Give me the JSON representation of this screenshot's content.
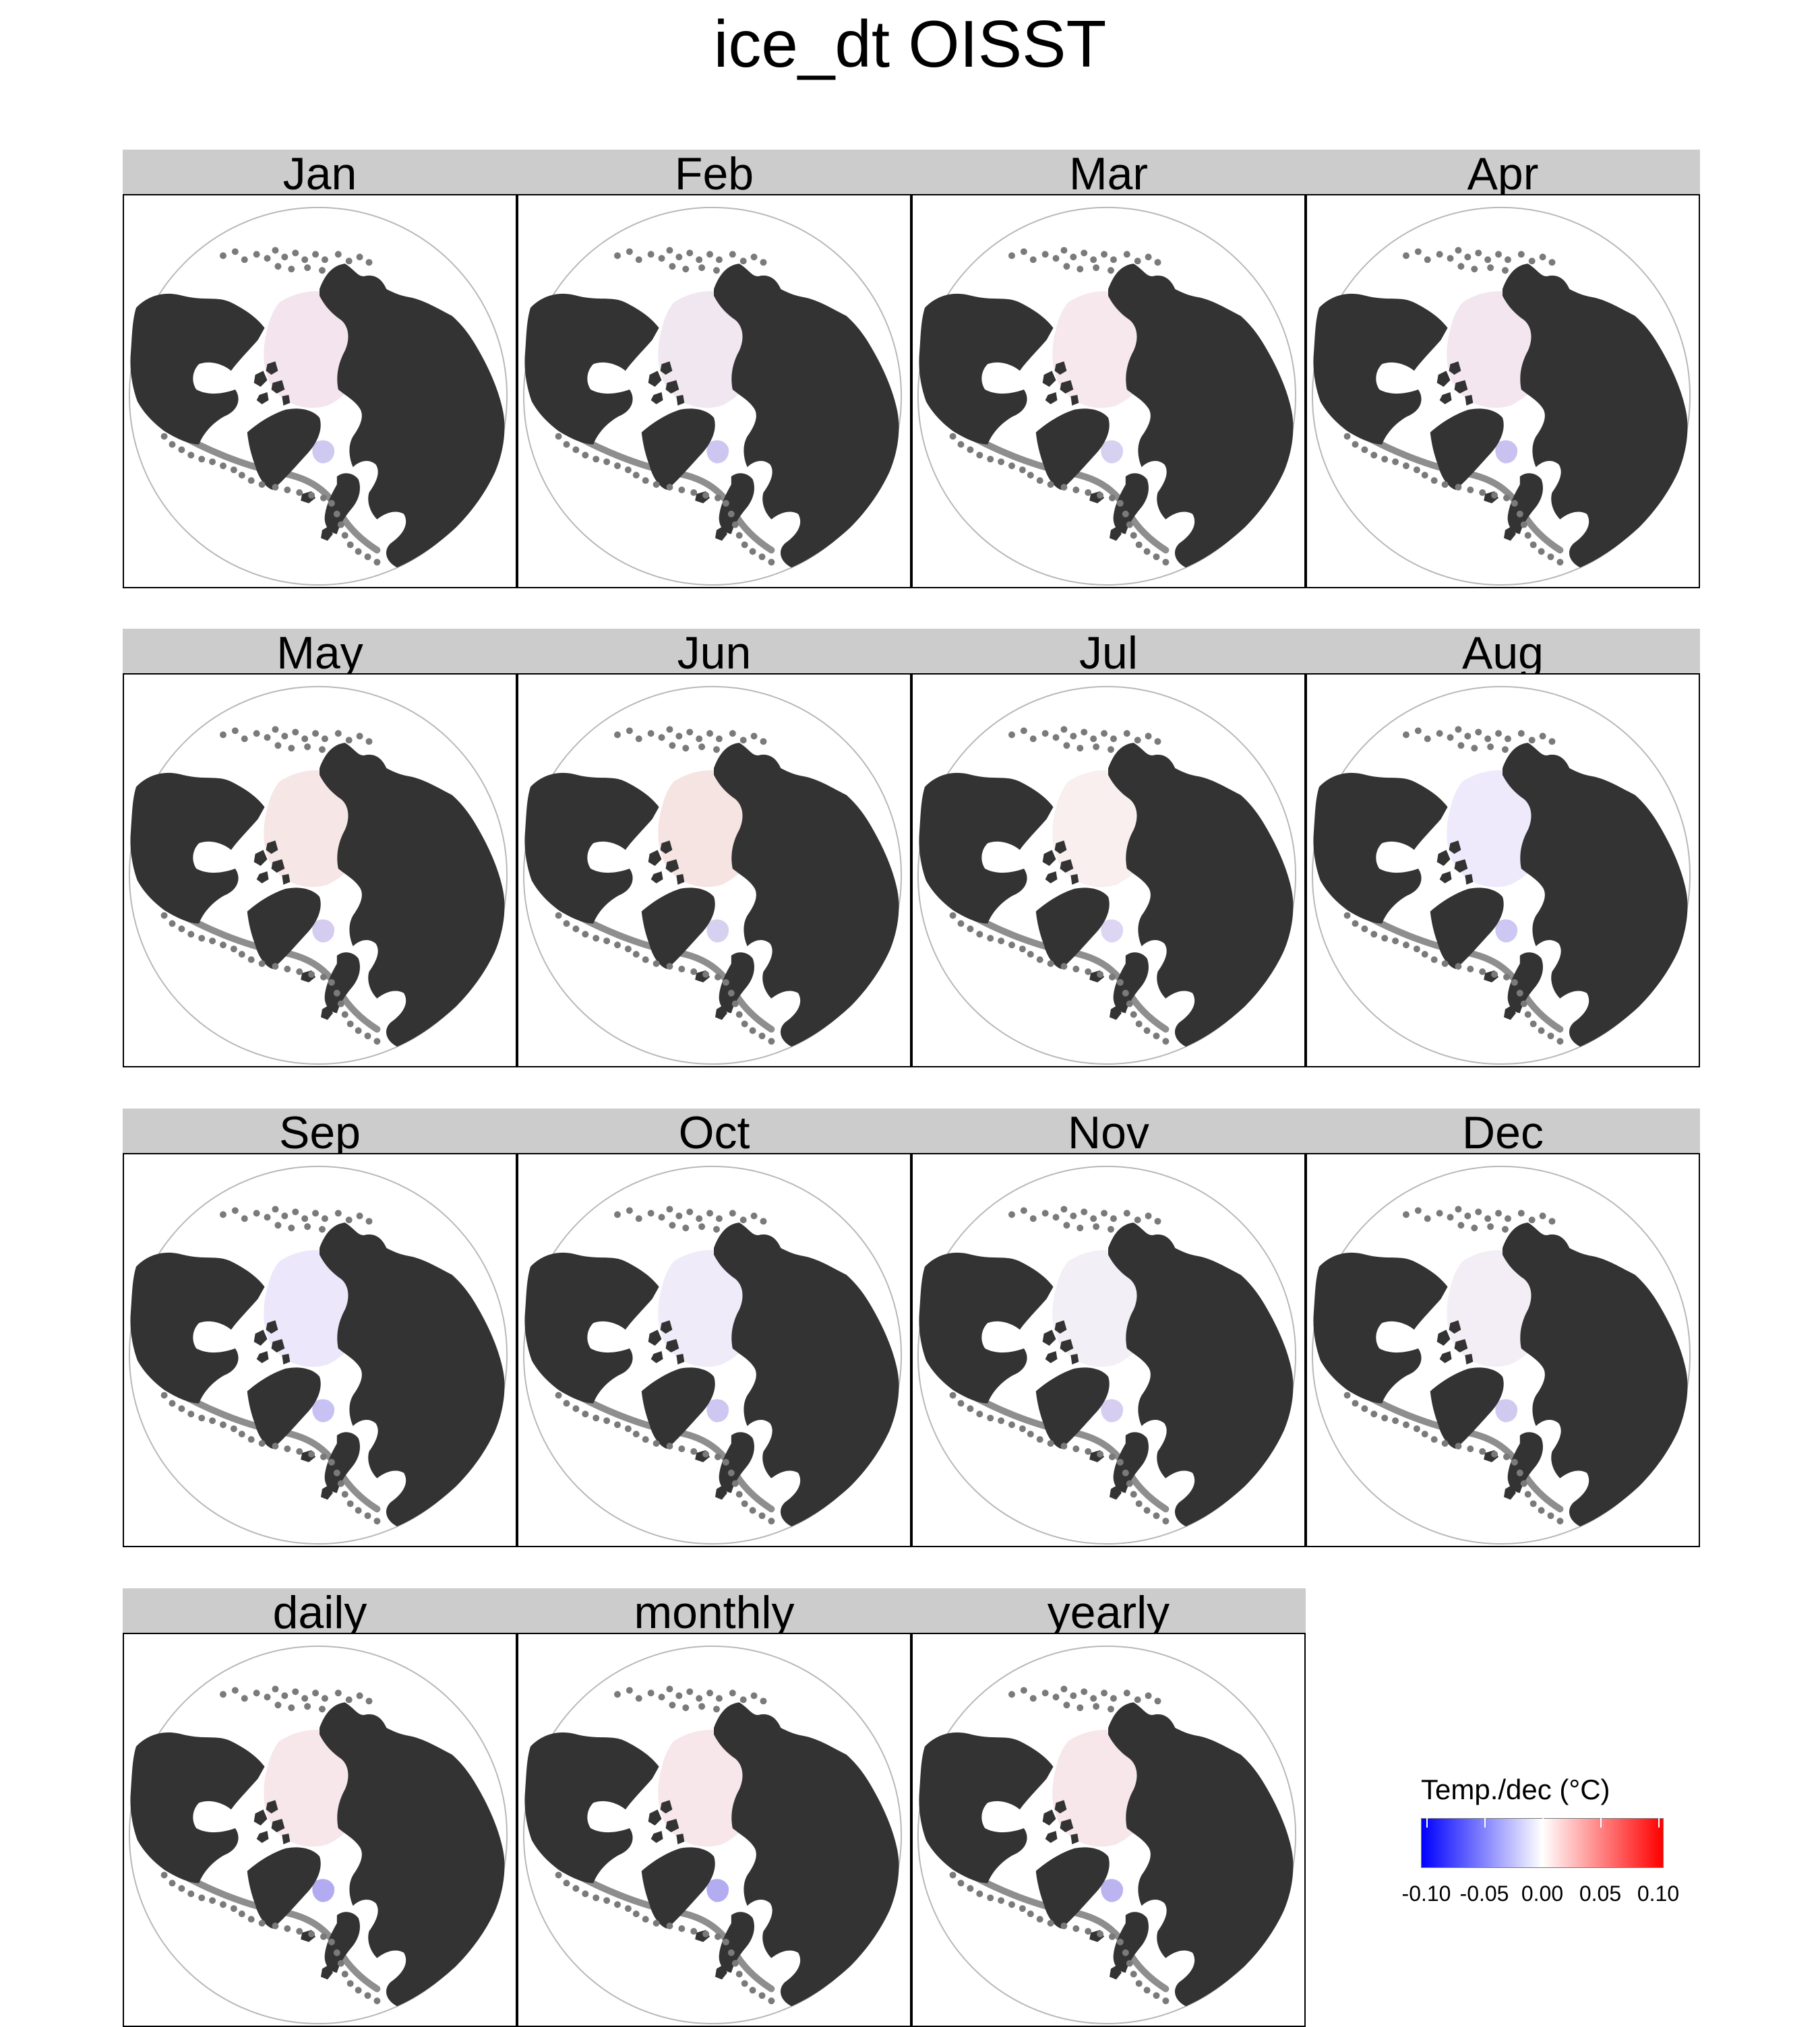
{
  "figure": {
    "title": "ice_dt OISST",
    "panels": [
      {
        "label": "Jan",
        "tint": "#f4e4ee",
        "accent": "#c9c3ef"
      },
      {
        "label": "Feb",
        "tint": "#f1e7f0",
        "accent": "#c6c0ef"
      },
      {
        "label": "Mar",
        "tint": "#f6e8ec",
        "accent": "#d2cbf0"
      },
      {
        "label": "Apr",
        "tint": "#f3e6ef",
        "accent": "#c3bbf0"
      },
      {
        "label": "May",
        "tint": "#f6e7e6",
        "accent": "#d0c8ee"
      },
      {
        "label": "Jun",
        "tint": "#f6e4e2",
        "accent": "#d3ccf0"
      },
      {
        "label": "Jul",
        "tint": "#f8efee",
        "accent": "#d8d2f2"
      },
      {
        "label": "Aug",
        "tint": "#eeeafc",
        "accent": "#c7c1f2"
      },
      {
        "label": "Sep",
        "tint": "#ece7fb",
        "accent": "#c2baf3"
      },
      {
        "label": "Oct",
        "tint": "#efebf9",
        "accent": "#c8c1f0"
      },
      {
        "label": "Nov",
        "tint": "#f3eff6",
        "accent": "#d0c9ef"
      },
      {
        "label": "Dec",
        "tint": "#f3eef5",
        "accent": "#cbc4ef"
      },
      {
        "label": "daily",
        "tint": "#f7e6ea",
        "accent": "#aaa2f0"
      },
      {
        "label": "monthly",
        "tint": "#f7e6ea",
        "accent": "#aba3ef"
      },
      {
        "label": "yearly",
        "tint": "#f7e6ea",
        "accent": "#b4acef"
      }
    ]
  },
  "legend": {
    "title": "Temp./dec (°C)",
    "ticks": [
      "-0.10",
      "-0.05",
      "0.00",
      "0.05",
      "0.10"
    ],
    "colormap": [
      "#0000ff",
      "#ffffff",
      "#ff0000"
    ]
  },
  "colors": {
    "land": "#333333",
    "ocean": "#ffffff",
    "ice_edge": "#7a7a7a",
    "strip": "#cccccc"
  }
}
